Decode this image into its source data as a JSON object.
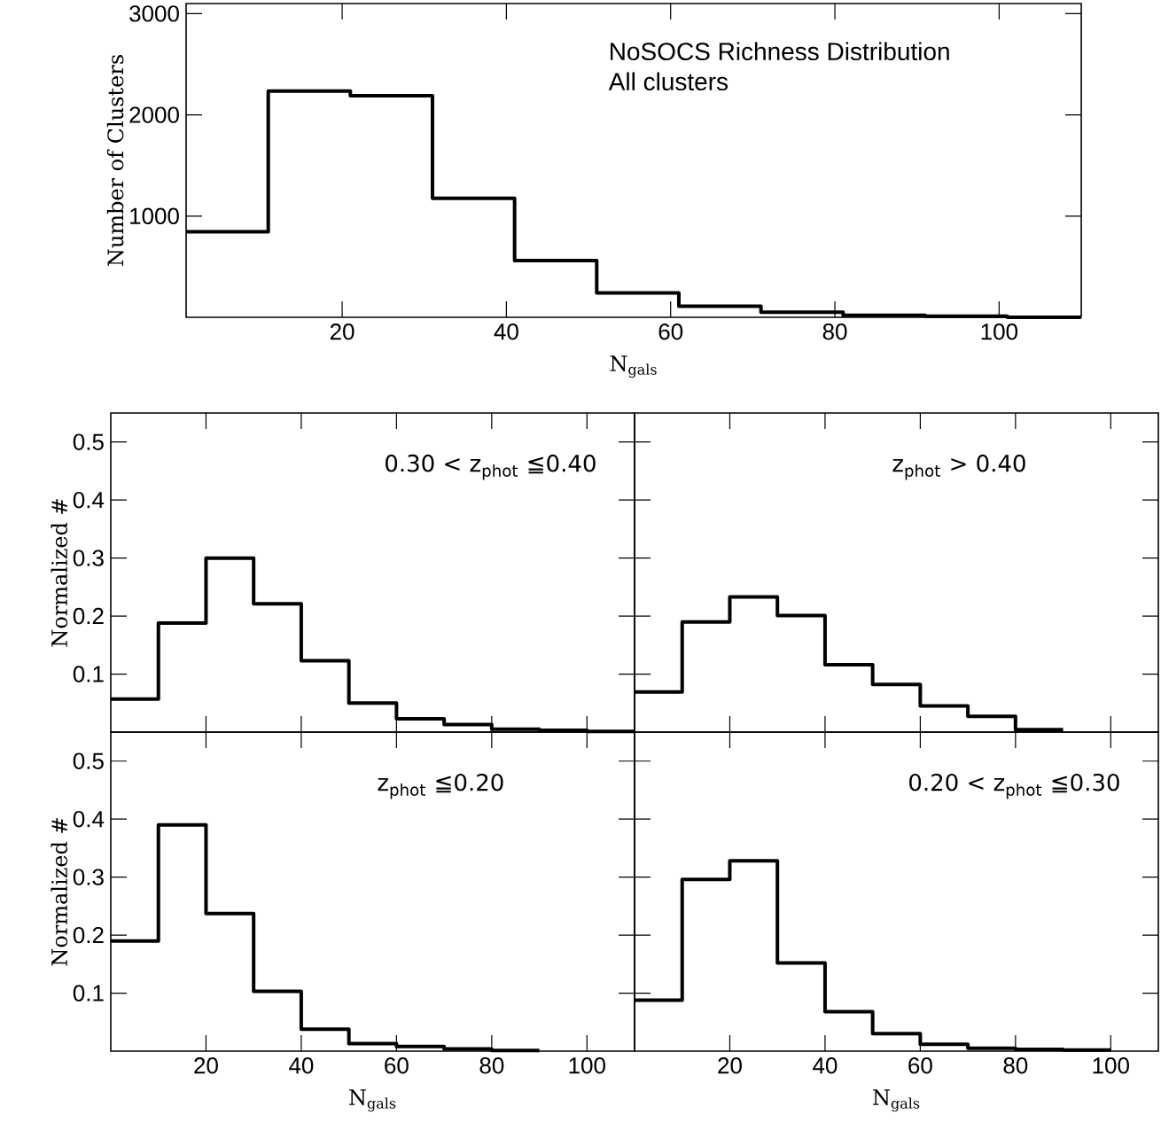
{
  "chart_data": [
    {
      "type": "histogram",
      "annotations": [
        "NoSOCS Richness Distribution",
        "All clusters"
      ],
      "xlabel": "N$_{gals}$",
      "ylabel": "Number of Clusters",
      "bins": [
        1,
        11,
        21,
        31,
        41,
        51,
        61,
        71,
        81,
        91,
        101,
        110
      ],
      "values": [
        845,
        2235,
        2190,
        1175,
        560,
        240,
        110,
        50,
        20,
        10,
        0
      ],
      "color": "#000000",
      "xlim": [
        1,
        110
      ],
      "ylim": [
        0,
        3100
      ],
      "xticks": [
        20,
        40,
        60,
        80,
        100
      ],
      "yticks": [
        1000,
        2000,
        3000
      ]
    },
    {
      "type": "histogram",
      "annotations": [
        "0.30 < z$_{phot}$ ≦0.40"
      ],
      "ylabel": "Normalized #",
      "bins": [
        0,
        10,
        20,
        30,
        40,
        50,
        60,
        70,
        80,
        90,
        100,
        110
      ],
      "values": [
        0.057,
        0.188,
        0.3,
        0.221,
        0.123,
        0.05,
        0.023,
        0.013,
        0.005,
        0.003,
        0.001
      ],
      "color": "#000000",
      "xlim": [
        0,
        110
      ],
      "ylim": [
        0,
        0.55
      ],
      "xticks": [
        20,
        40,
        60,
        80,
        100
      ],
      "yticks": [
        0.1,
        0.2,
        0.3,
        0.4,
        0.5
      ],
      "tick_labels": "y"
    },
    {
      "type": "histogram",
      "annotations": [
        "z$_{phot}$ > 0.40"
      ],
      "bins": [
        0,
        10,
        20,
        30,
        40,
        50,
        60,
        70,
        80,
        90
      ],
      "values": [
        0.069,
        0.19,
        0.233,
        0.201,
        0.116,
        0.082,
        0.045,
        0.027,
        0.004
      ],
      "color": "#000000",
      "xlim": [
        0,
        110
      ],
      "ylim": [
        0,
        0.55
      ],
      "xticks": [
        20,
        40,
        60,
        80,
        100
      ],
      "yticks": [
        0.1,
        0.2,
        0.3,
        0.4,
        0.5
      ],
      "tick_labels": false
    },
    {
      "type": "histogram",
      "annotations": [
        "z$_{phot}$ ≦0.20"
      ],
      "xlabel": "N$_{gals}$",
      "ylabel": "Normalized #",
      "bins": [
        0,
        10,
        20,
        30,
        40,
        50,
        60,
        70,
        80,
        90
      ],
      "values": [
        0.19,
        0.39,
        0.237,
        0.103,
        0.038,
        0.013,
        0.008,
        0.004,
        0.001
      ],
      "color": "#000000",
      "xlim": [
        0,
        110
      ],
      "ylim": [
        0,
        0.55
      ],
      "xticks": [
        20,
        40,
        60,
        80,
        100
      ],
      "yticks": [
        0.1,
        0.2,
        0.3,
        0.4,
        0.5
      ]
    },
    {
      "type": "histogram",
      "annotations": [
        "0.20 < z$_{phot}$ ≦0.30"
      ],
      "xlabel": "N$_{gals}$",
      "bins": [
        0,
        10,
        20,
        30,
        40,
        50,
        60,
        70,
        80,
        90,
        100
      ],
      "values": [
        0.088,
        0.296,
        0.328,
        0.152,
        0.068,
        0.03,
        0.012,
        0.005,
        0.003,
        0.002
      ],
      "color": "#000000",
      "xlim": [
        0,
        110
      ],
      "ylim": [
        0,
        0.55
      ],
      "xticks": [
        20,
        40,
        60,
        80,
        100
      ],
      "yticks": [
        0.1,
        0.2,
        0.3,
        0.4,
        0.5
      ],
      "tick_labels": "x"
    }
  ]
}
